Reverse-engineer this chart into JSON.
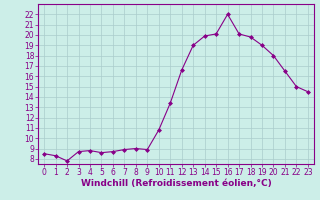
{
  "x": [
    0,
    1,
    2,
    3,
    4,
    5,
    6,
    7,
    8,
    9,
    10,
    11,
    12,
    13,
    14,
    15,
    16,
    17,
    18,
    19,
    20,
    21,
    22,
    23
  ],
  "y": [
    8.5,
    8.3,
    7.8,
    8.7,
    8.8,
    8.6,
    8.7,
    8.9,
    9.0,
    8.9,
    10.8,
    13.4,
    16.6,
    19.0,
    19.9,
    20.1,
    22.0,
    20.1,
    19.8,
    19.0,
    18.0,
    16.5,
    15.0,
    14.5
  ],
  "line_color": "#880088",
  "marker": "D",
  "marker_size": 2,
  "bg_color": "#cceee8",
  "grid_color": "#aacccc",
  "xlabel": "Windchill (Refroidissement éolien,°C)",
  "ylabel": "",
  "ylim": [
    7.5,
    23
  ],
  "xlim": [
    -0.5,
    23.5
  ],
  "yticks": [
    8,
    9,
    10,
    11,
    12,
    13,
    14,
    15,
    16,
    17,
    18,
    19,
    20,
    21,
    22
  ],
  "xticks": [
    0,
    1,
    2,
    3,
    4,
    5,
    6,
    7,
    8,
    9,
    10,
    11,
    12,
    13,
    14,
    15,
    16,
    17,
    18,
    19,
    20,
    21,
    22,
    23
  ],
  "tick_label_fontsize": 5.5,
  "xlabel_fontsize": 6.5,
  "linewidth": 0.8
}
